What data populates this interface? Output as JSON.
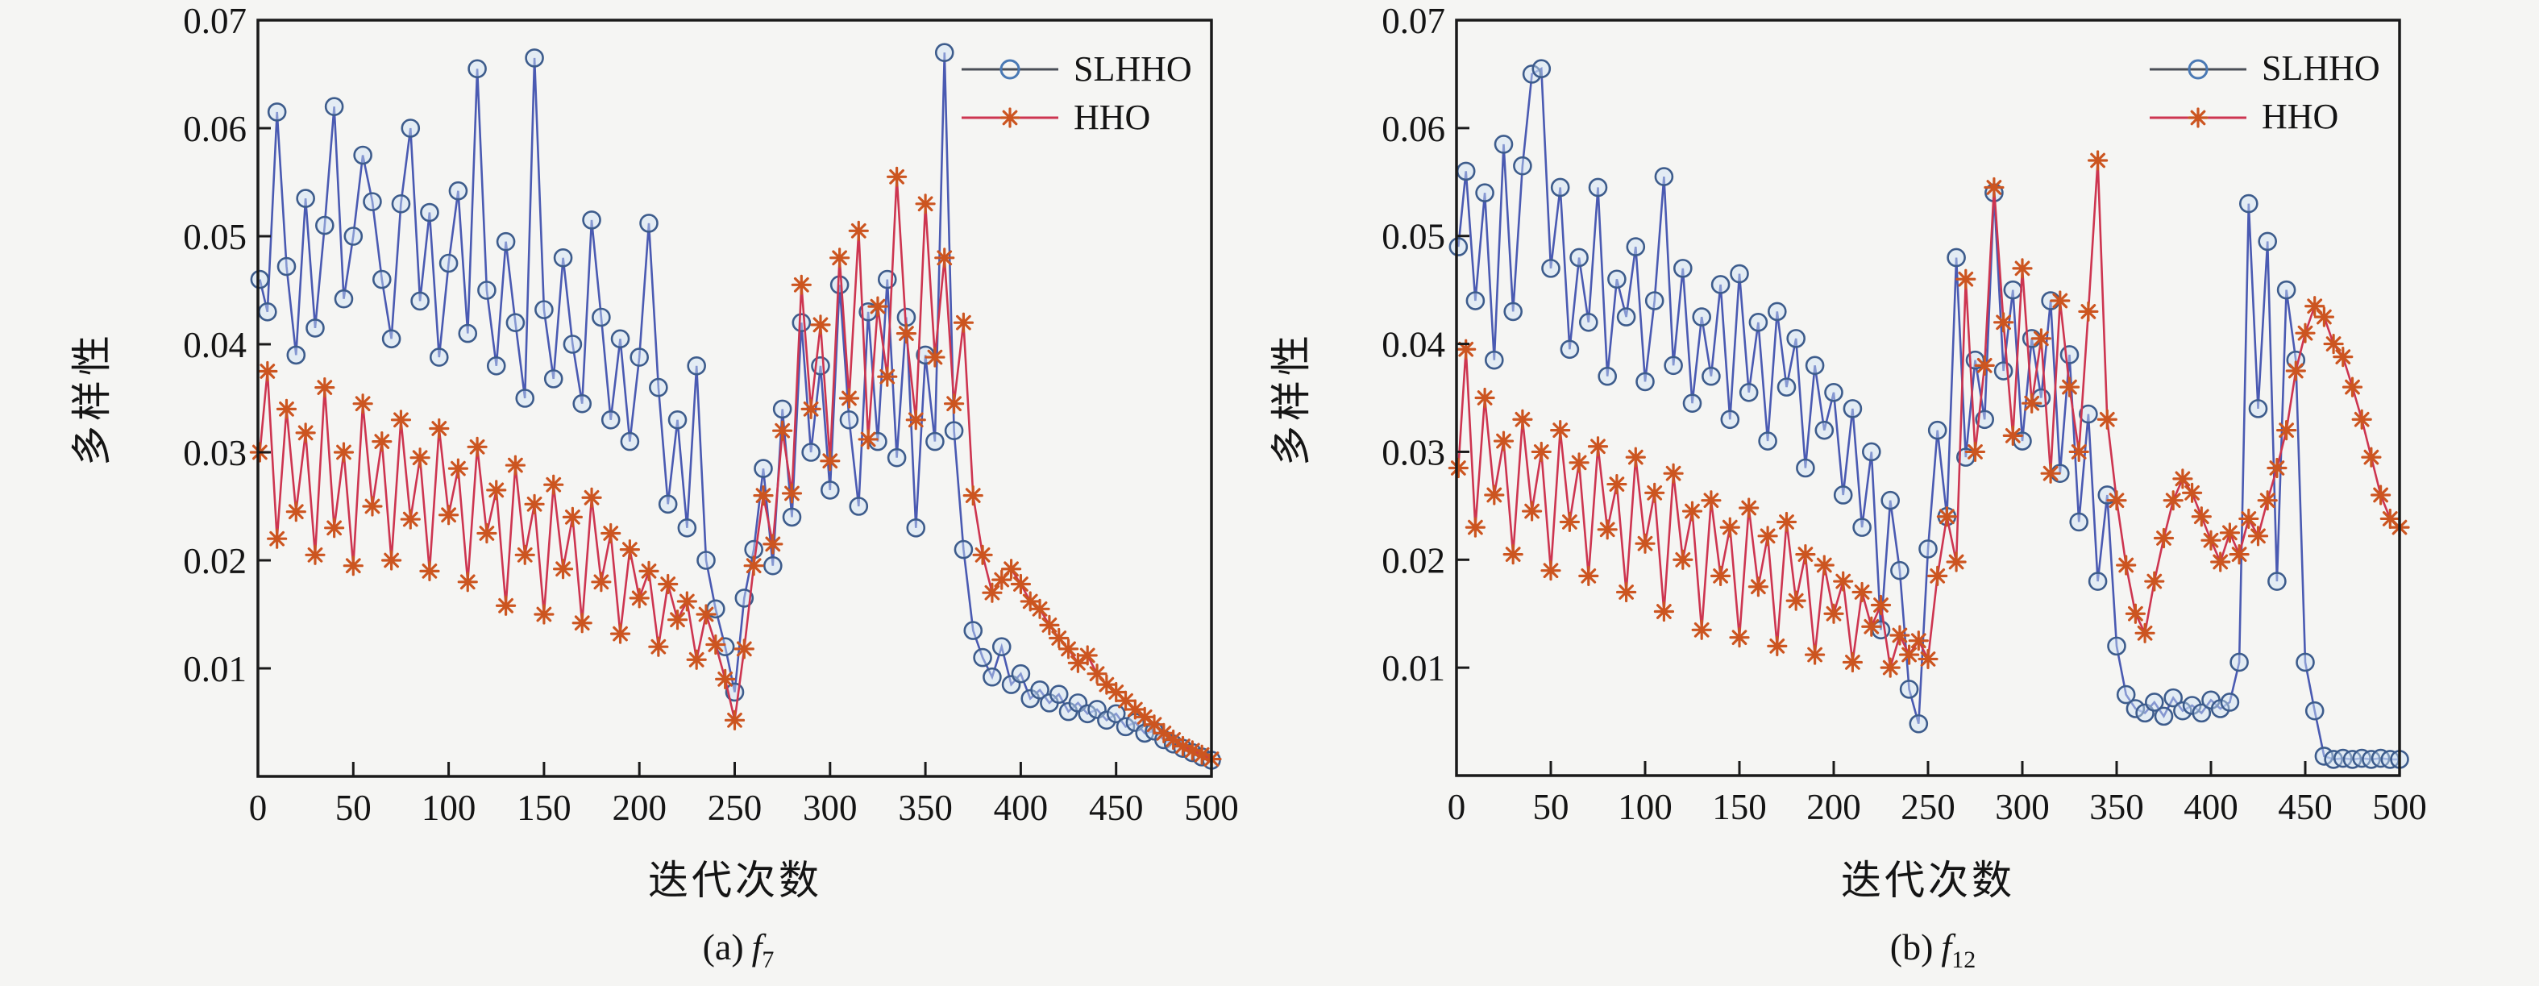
{
  "figure": {
    "background_color": "#f5f5f3",
    "axis_color": "#1a1a1a"
  },
  "chart_data": [
    {
      "type": "line",
      "title": "",
      "xlabel": "迭代次数",
      "ylabel": "多样性",
      "caption": {
        "prefix": "(a)",
        "symbol": "f",
        "subscript": "7"
      },
      "xlim": [
        0,
        500
      ],
      "ylim": [
        0,
        0.07
      ],
      "xticks": [
        "0",
        "50",
        "100",
        "150",
        "200",
        "250",
        "300",
        "350",
        "400",
        "450",
        "500"
      ],
      "yticks": [
        "0.01",
        "0.02",
        "0.03",
        "0.04",
        "0.05",
        "0.06",
        "0.07"
      ],
      "grid": false,
      "legend_position": "top-right-inside",
      "x": [
        1,
        5,
        10,
        15,
        20,
        25,
        30,
        35,
        40,
        45,
        50,
        55,
        60,
        65,
        70,
        75,
        80,
        85,
        90,
        95,
        100,
        105,
        110,
        115,
        120,
        125,
        130,
        135,
        140,
        145,
        150,
        155,
        160,
        165,
        170,
        175,
        180,
        185,
        190,
        195,
        200,
        205,
        210,
        215,
        220,
        225,
        230,
        235,
        240,
        245,
        250,
        255,
        260,
        265,
        270,
        275,
        280,
        285,
        290,
        295,
        300,
        305,
        310,
        315,
        320,
        325,
        330,
        335,
        340,
        345,
        350,
        355,
        360,
        365,
        370,
        375,
        380,
        385,
        390,
        395,
        400,
        405,
        410,
        415,
        420,
        425,
        430,
        435,
        440,
        445,
        450,
        455,
        460,
        465,
        470,
        475,
        480,
        485,
        490,
        495,
        500
      ],
      "series": [
        {
          "name": "SLHHO",
          "marker": "circle",
          "line_color": "#4a5ab2",
          "marker_color": "#3d5c8c",
          "marker_fill": "#cfe2f6",
          "values": [
            0.046,
            0.043,
            0.0615,
            0.0472,
            0.039,
            0.0535,
            0.0415,
            0.051,
            0.062,
            0.0442,
            0.05,
            0.0575,
            0.0532,
            0.046,
            0.0405,
            0.053,
            0.06,
            0.044,
            0.0522,
            0.0388,
            0.0475,
            0.0542,
            0.041,
            0.0655,
            0.045,
            0.038,
            0.0495,
            0.042,
            0.035,
            0.0665,
            0.0432,
            0.0368,
            0.048,
            0.04,
            0.0345,
            0.0515,
            0.0425,
            0.033,
            0.0405,
            0.031,
            0.0388,
            0.0512,
            0.036,
            0.0252,
            0.033,
            0.023,
            0.038,
            0.02,
            0.0155,
            0.012,
            0.0078,
            0.0165,
            0.021,
            0.0285,
            0.0195,
            0.034,
            0.024,
            0.042,
            0.03,
            0.038,
            0.0265,
            0.0455,
            0.033,
            0.025,
            0.043,
            0.031,
            0.046,
            0.0295,
            0.0425,
            0.023,
            0.039,
            0.031,
            0.067,
            0.032,
            0.021,
            0.0135,
            0.011,
            0.0092,
            0.012,
            0.0085,
            0.0095,
            0.0072,
            0.008,
            0.0068,
            0.0076,
            0.006,
            0.0068,
            0.0058,
            0.0062,
            0.0052,
            0.0058,
            0.0046,
            0.005,
            0.004,
            0.0042,
            0.0034,
            0.003,
            0.0026,
            0.0022,
            0.0018,
            0.0015
          ]
        },
        {
          "name": "HHO",
          "marker": "asterisk",
          "line_color": "#cd3550",
          "marker_color": "#cc5520",
          "values": [
            0.03,
            0.0375,
            0.022,
            0.034,
            0.0245,
            0.0318,
            0.0205,
            0.036,
            0.023,
            0.03,
            0.0195,
            0.0345,
            0.025,
            0.031,
            0.02,
            0.033,
            0.0238,
            0.0295,
            0.019,
            0.0322,
            0.0242,
            0.0285,
            0.018,
            0.0305,
            0.0225,
            0.0265,
            0.0158,
            0.0288,
            0.0205,
            0.0252,
            0.015,
            0.027,
            0.0192,
            0.024,
            0.0142,
            0.0258,
            0.018,
            0.0225,
            0.0132,
            0.021,
            0.0165,
            0.019,
            0.012,
            0.0178,
            0.0145,
            0.0162,
            0.0108,
            0.015,
            0.0122,
            0.009,
            0.0052,
            0.0118,
            0.0195,
            0.026,
            0.0215,
            0.032,
            0.0262,
            0.0455,
            0.034,
            0.0418,
            0.0292,
            0.048,
            0.035,
            0.0505,
            0.0312,
            0.0435,
            0.037,
            0.0555,
            0.041,
            0.033,
            0.053,
            0.0388,
            0.048,
            0.0345,
            0.042,
            0.026,
            0.0205,
            0.017,
            0.0182,
            0.0192,
            0.0178,
            0.0162,
            0.0155,
            0.014,
            0.0128,
            0.0118,
            0.0105,
            0.0112,
            0.0095,
            0.0085,
            0.0078,
            0.007,
            0.0062,
            0.0055,
            0.0048,
            0.004,
            0.0034,
            0.0028,
            0.0024,
            0.002,
            0.0016
          ]
        }
      ]
    },
    {
      "type": "line",
      "title": "",
      "xlabel": "迭代次数",
      "ylabel": "多样性",
      "caption": {
        "prefix": "(b)",
        "symbol": "f",
        "subscript": "12"
      },
      "xlim": [
        0,
        500
      ],
      "ylim": [
        0,
        0.07
      ],
      "xticks": [
        "0",
        "50",
        "100",
        "150",
        "200",
        "250",
        "300",
        "350",
        "400",
        "450",
        "500"
      ],
      "yticks": [
        "0.01",
        "0.02",
        "0.03",
        "0.04",
        "0.05",
        "0.06",
        "0.07"
      ],
      "grid": false,
      "legend_position": "top-right-inside",
      "x": [
        1,
        5,
        10,
        15,
        20,
        25,
        30,
        35,
        40,
        45,
        50,
        55,
        60,
        65,
        70,
        75,
        80,
        85,
        90,
        95,
        100,
        105,
        110,
        115,
        120,
        125,
        130,
        135,
        140,
        145,
        150,
        155,
        160,
        165,
        170,
        175,
        180,
        185,
        190,
        195,
        200,
        205,
        210,
        215,
        220,
        225,
        230,
        235,
        240,
        245,
        250,
        255,
        260,
        265,
        270,
        275,
        280,
        285,
        290,
        295,
        300,
        305,
        310,
        315,
        320,
        325,
        330,
        335,
        340,
        345,
        350,
        355,
        360,
        365,
        370,
        375,
        380,
        385,
        390,
        395,
        400,
        405,
        410,
        415,
        420,
        425,
        430,
        435,
        440,
        445,
        450,
        455,
        460,
        465,
        470,
        475,
        480,
        485,
        490,
        495,
        500
      ],
      "series": [
        {
          "name": "SLHHO",
          "marker": "circle",
          "line_color": "#4a5ab2",
          "marker_color": "#3d5c8c",
          "marker_fill": "#cfe2f6",
          "values": [
            0.049,
            0.056,
            0.044,
            0.054,
            0.0385,
            0.0585,
            0.043,
            0.0565,
            0.065,
            0.0655,
            0.047,
            0.0545,
            0.0395,
            0.048,
            0.042,
            0.0545,
            0.037,
            0.046,
            0.0425,
            0.049,
            0.0365,
            0.044,
            0.0555,
            0.038,
            0.047,
            0.0345,
            0.0425,
            0.037,
            0.0455,
            0.033,
            0.0465,
            0.0355,
            0.042,
            0.031,
            0.043,
            0.036,
            0.0405,
            0.0285,
            0.038,
            0.032,
            0.0355,
            0.026,
            0.034,
            0.023,
            0.03,
            0.0135,
            0.0255,
            0.019,
            0.008,
            0.0048,
            0.021,
            0.032,
            0.024,
            0.048,
            0.0295,
            0.0385,
            0.033,
            0.054,
            0.0375,
            0.045,
            0.031,
            0.0405,
            0.035,
            0.044,
            0.028,
            0.039,
            0.0235,
            0.0335,
            0.018,
            0.026,
            0.012,
            0.0075,
            0.0062,
            0.0058,
            0.0068,
            0.0055,
            0.0072,
            0.006,
            0.0065,
            0.0058,
            0.007,
            0.0062,
            0.0068,
            0.0105,
            0.053,
            0.034,
            0.0495,
            0.018,
            0.045,
            0.0385,
            0.0105,
            0.006,
            0.0018,
            0.0015,
            0.0016,
            0.0015,
            0.0016,
            0.0015,
            0.0016,
            0.0015,
            0.0015
          ]
        },
        {
          "name": "HHO",
          "marker": "asterisk",
          "line_color": "#cd3550",
          "marker_color": "#cc5520",
          "values": [
            0.0285,
            0.0395,
            0.023,
            0.035,
            0.026,
            0.031,
            0.0205,
            0.033,
            0.0245,
            0.03,
            0.019,
            0.032,
            0.0235,
            0.029,
            0.0185,
            0.0305,
            0.0228,
            0.027,
            0.017,
            0.0295,
            0.0215,
            0.0262,
            0.0152,
            0.028,
            0.02,
            0.0245,
            0.0135,
            0.0255,
            0.0185,
            0.023,
            0.0128,
            0.0248,
            0.0175,
            0.0222,
            0.012,
            0.0235,
            0.0162,
            0.0205,
            0.0112,
            0.0195,
            0.015,
            0.018,
            0.0105,
            0.017,
            0.0138,
            0.0158,
            0.01,
            0.013,
            0.0112,
            0.0125,
            0.0108,
            0.0185,
            0.024,
            0.0198,
            0.046,
            0.03,
            0.038,
            0.0545,
            0.042,
            0.0315,
            0.047,
            0.0345,
            0.0405,
            0.028,
            0.044,
            0.036,
            0.03,
            0.043,
            0.057,
            0.033,
            0.0255,
            0.0195,
            0.015,
            0.0132,
            0.018,
            0.022,
            0.0255,
            0.0275,
            0.0262,
            0.024,
            0.0218,
            0.0198,
            0.0225,
            0.0205,
            0.0238,
            0.0222,
            0.0255,
            0.0285,
            0.032,
            0.0375,
            0.041,
            0.0435,
            0.0425,
            0.04,
            0.0388,
            0.036,
            0.033,
            0.0295,
            0.026,
            0.0238,
            0.023
          ]
        }
      ]
    }
  ]
}
